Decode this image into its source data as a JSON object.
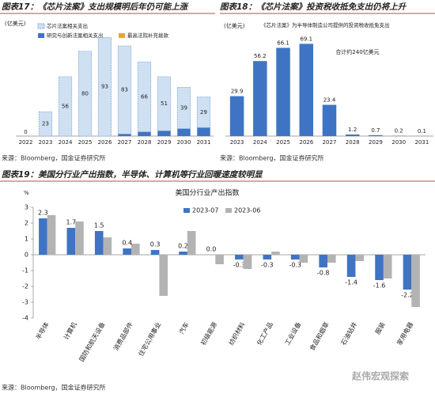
{
  "charts": [
    {
      "type": "stacked_bar",
      "title": "图表17：《芯片法案》支出规模明后年仍可能上涨",
      "unit": "(亿美元)",
      "categories": [
        "2022",
        "2023",
        "2024",
        "2025",
        "2026",
        "2027",
        "2028",
        "2029",
        "2030",
        "2031"
      ],
      "series": [
        {
          "name": "研究与创新法案相关支出",
          "color": "#3f74c4",
          "values": [
            0,
            0,
            0,
            0,
            0,
            2,
            4,
            5,
            7,
            8
          ]
        },
        {
          "name": "最高法院补充拨款",
          "color": "#e8a33c",
          "values": [
            0,
            0,
            0,
            0,
            0,
            0,
            0,
            0,
            0,
            0
          ]
        },
        {
          "name": "芯片法案相关支出",
          "color": "#cfe0f3",
          "style": "dashed",
          "data_labels": true,
          "values": [
            0,
            23,
            56,
            80,
            93,
            83,
            66,
            51,
            39,
            29
          ]
        }
      ],
      "ylim": [
        0,
        100
      ],
      "source": "来源：Bloomberg，国金证券研究所"
    },
    {
      "type": "bar",
      "title": "图表18：《芯片法案》投资税收抵免支出仍将上升",
      "unit": "(亿美元)",
      "categories": [
        "2023",
        "2024",
        "2025",
        "2026",
        "2027",
        "2028",
        "2029",
        "2030",
        "2031"
      ],
      "series": [
        {
          "name": "《芯片法案》为半导体制造公司提供的投资税收抵免支出",
          "color": "#3f74c4",
          "data_labels": true,
          "values": [
            29.9,
            56.2,
            66.1,
            69.1,
            23.4,
            1.2,
            0.7,
            0.2,
            0.1
          ]
        }
      ],
      "annotation": "合计约240亿美元",
      "ylim": [
        0,
        80
      ],
      "source": "来源：Bloomberg，国金证券研究所"
    },
    {
      "type": "grouped_bar",
      "title": "图表19：美国分行业产出指数，半导体、计算机等行业回暖速度较明显",
      "chart_title": "美国分行业产出指数",
      "unit": "%",
      "categories": [
        "半导体",
        "计算机",
        "国防和航天设备",
        "消费品部件",
        "住宅公用事业",
        "汽车",
        "初级能源",
        "纺织材料",
        "化工产品",
        "工业设备",
        "食品和烟草",
        "石油钻井",
        "服装",
        "家用电器"
      ],
      "series": [
        {
          "name": "2023-07",
          "color": "#3f74c4",
          "data_labels": true,
          "values": [
            2.3,
            1.7,
            1.5,
            0.4,
            0.3,
            0.2,
            0,
            -0.3,
            -0.3,
            -0.3,
            -0.8,
            -1.4,
            -1.6,
            -2.2
          ],
          "value_labels": [
            "2.3",
            "1.7",
            "1.5",
            "0.4",
            "0.3",
            "0.2",
            "0.0",
            "-0.3",
            "-0.3",
            "-0.3",
            "-0.8",
            "-1.4",
            "-1.6",
            "-2.2"
          ]
        },
        {
          "name": "2023-06",
          "color": "#b3b3b3",
          "values": [
            2.5,
            2.1,
            1.1,
            0.7,
            -2.6,
            1.5,
            -0.6,
            -0.9,
            0.2,
            -0.5,
            -0.5,
            -0.4,
            -1.5,
            -3.3
          ]
        }
      ],
      "ylim": [
        -4,
        3
      ],
      "yticks": [
        -4,
        -3,
        -2,
        -1,
        0,
        1,
        2,
        3
      ],
      "source": "来源：Bloomberg，国金证券研究所",
      "watermark": "赵伟宏观探索"
    }
  ]
}
